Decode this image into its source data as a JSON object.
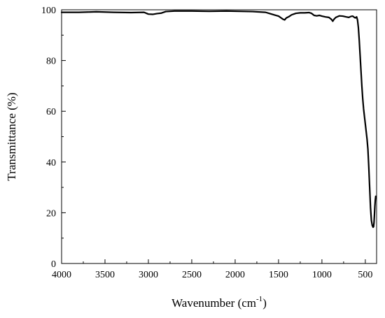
{
  "chart_data": {
    "type": "line",
    "title": "",
    "xlabel": "Wavenumber (cm",
    "xlabel_sup": "-1",
    "xlabel_suffix": ")",
    "ylabel": "Transmittance (%)",
    "xlim": [
      4000,
      370
    ],
    "ylim": [
      0,
      100
    ],
    "x_reversed": true,
    "x_ticks": [
      4000,
      3500,
      3000,
      2500,
      2000,
      1500,
      1000,
      500
    ],
    "y_ticks": [
      0,
      20,
      40,
      60,
      80,
      100
    ],
    "x_tick_labels": [
      "4000",
      "3500",
      "3000",
      "2500",
      "2000",
      "1500",
      "1000",
      "500"
    ],
    "y_tick_labels": [
      "0",
      "20",
      "40",
      "60",
      "80",
      "100"
    ],
    "grid": false,
    "legend": "none",
    "line_color": "#000000",
    "series": [
      {
        "x": [
          4000,
          3800,
          3700,
          3600,
          3400,
          3200,
          3050,
          3000,
          2950,
          2900,
          2850,
          2800,
          2700,
          2500,
          2300,
          2100,
          1950,
          1800,
          1650,
          1600,
          1550,
          1500,
          1470,
          1450,
          1430,
          1410,
          1380,
          1350,
          1300,
          1250,
          1200,
          1150,
          1120,
          1090,
          1060,
          1030,
          1000,
          960,
          920,
          890,
          875,
          860,
          840,
          800,
          760,
          720,
          690,
          665,
          645,
          630,
          615,
          600,
          590,
          580,
          570,
          560,
          550,
          540,
          530,
          520,
          510,
          500,
          490,
          480,
          470,
          460,
          450,
          440,
          430,
          420,
          410,
          405,
          400,
          395,
          390,
          385,
          380
        ],
        "y": [
          99.0,
          99.0,
          99.1,
          99.2,
          99.0,
          98.9,
          99.0,
          98.3,
          98.2,
          98.5,
          98.7,
          99.3,
          99.5,
          99.5,
          99.4,
          99.5,
          99.4,
          99.3,
          99.0,
          98.5,
          98.0,
          97.5,
          96.8,
          96.3,
          96.0,
          96.8,
          97.3,
          98.0,
          98.6,
          98.8,
          98.8,
          98.9,
          98.6,
          97.8,
          97.6,
          97.8,
          97.5,
          97.2,
          97.0,
          96.2,
          95.5,
          96.3,
          97.0,
          97.6,
          97.5,
          97.2,
          97.0,
          97.4,
          97.5,
          97.1,
          96.8,
          97.2,
          96.0,
          93.0,
          88.0,
          82.0,
          76.0,
          70.0,
          65.0,
          61.0,
          58.0,
          55.0,
          52.0,
          49.0,
          45.0,
          38.0,
          30.0,
          22.0,
          17.0,
          15.0,
          14.3,
          14.5,
          16.0,
          19.0,
          22.5,
          25.0,
          26.5
        ]
      }
    ]
  }
}
